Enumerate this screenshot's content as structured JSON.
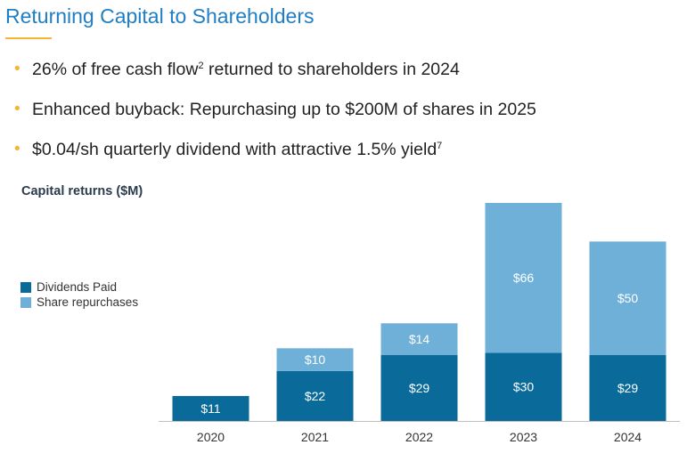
{
  "page": {
    "title": "Returning Capital to Shareholders",
    "bullets": [
      {
        "text": "26% of free cash flow",
        "sup": "2",
        "after": " returned to shareholders in 2024"
      },
      {
        "text": "Enhanced buyback: Repurchasing up to $200M of shares in 2025",
        "sup": "",
        "after": ""
      },
      {
        "text": "$0.04/sh quarterly dividend with attractive 1.5% yield",
        "sup": "7",
        "after": ""
      }
    ],
    "bullet_glyph": "•"
  },
  "chart_data": {
    "type": "bar",
    "stacked": true,
    "title": "Capital returns ($M)",
    "categories": [
      "2020",
      "2021",
      "2022",
      "2023",
      "2024"
    ],
    "series": [
      {
        "name": "Dividends Paid",
        "values": [
          11,
          22,
          29,
          30,
          29
        ],
        "labels": [
          "$11",
          "$22",
          "$29",
          "$30",
          "$29"
        ],
        "color": "#0a6b9b"
      },
      {
        "name": "Share repurchases",
        "values": [
          0,
          10,
          14,
          66,
          50
        ],
        "labels": [
          "",
          "$10",
          "$14",
          "$66",
          "$50"
        ],
        "color": "#6fb0d8"
      }
    ],
    "ylim": [
      0,
      96
    ],
    "grid": false,
    "legend": "left"
  }
}
